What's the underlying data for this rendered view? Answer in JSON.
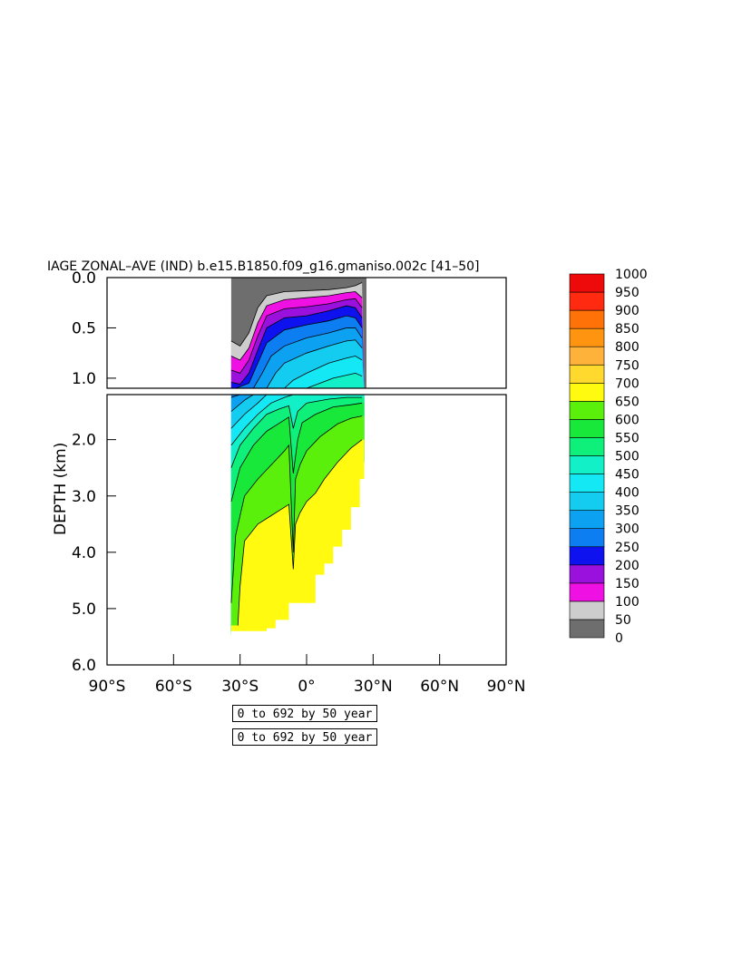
{
  "chart_data": {
    "type": "heatmap",
    "title": "IAGE ZONAL–AVE (IND) b.e15.B1850.f09_g16.gmaniso.002c [41–50]",
    "ylabel": "DEPTH (km)",
    "x_ticks": [
      "90°S",
      "60°S",
      "30°S",
      "0°",
      "30°N",
      "60°N",
      "90°N"
    ],
    "y_ticks_upper": [
      "0.0",
      "0.5",
      "1.0"
    ],
    "y_ticks_lower": [
      "2.0",
      "3.0",
      "4.0",
      "5.0",
      "6.0"
    ],
    "xlim": [
      -90,
      90
    ],
    "ylim_upper_km": [
      0.0,
      1.1
    ],
    "ylim_lower_km": [
      1.2,
      6.0
    ],
    "data_extent_lat": [
      -34,
      26
    ],
    "levels": [
      0,
      50,
      100,
      150,
      200,
      250,
      300,
      350,
      400,
      450,
      500,
      550,
      600,
      650,
      700,
      750,
      800,
      850,
      900,
      950,
      1000
    ],
    "level_labels": [
      "0",
      "50",
      "100",
      "150",
      "200",
      "250",
      "300",
      "350",
      "400",
      "450",
      "500",
      "550",
      "600",
      "650",
      "700",
      "750",
      "800",
      "850",
      "900",
      "950",
      "1000"
    ],
    "level_colors": [
      "#6e6e6e",
      "#cdcdcd",
      "#ef10e3",
      "#9a11de",
      "#0e12ef",
      "#0d7ef2",
      "#0da1f2",
      "#13ccf0",
      "#15e8f5",
      "#12f0c8",
      "#0ff07a",
      "#17e83a",
      "#5af00c",
      "#fffa10",
      "#ffd92e",
      "#ffb23a",
      "#ff9410",
      "#ff7208",
      "#ff2a10",
      "#ee0a0a",
      "#c8080a"
    ],
    "contours_upper": [
      {
        "level": 50,
        "points": [
          [
            -34,
            0.63
          ],
          [
            -30,
            0.68
          ],
          [
            -26,
            0.55
          ],
          [
            -22,
            0.3
          ],
          [
            -18,
            0.18
          ],
          [
            -10,
            0.14
          ],
          [
            0,
            0.13
          ],
          [
            10,
            0.12
          ],
          [
            18,
            0.1
          ],
          [
            22,
            0.08
          ],
          [
            25,
            0.05
          ]
        ]
      },
      {
        "level": 100,
        "points": [
          [
            -34,
            0.78
          ],
          [
            -30,
            0.82
          ],
          [
            -26,
            0.7
          ],
          [
            -22,
            0.45
          ],
          [
            -18,
            0.28
          ],
          [
            -10,
            0.22
          ],
          [
            0,
            0.2
          ],
          [
            10,
            0.18
          ],
          [
            18,
            0.15
          ],
          [
            22,
            0.14
          ],
          [
            25,
            0.2
          ]
        ]
      },
      {
        "level": 150,
        "points": [
          [
            -34,
            0.92
          ],
          [
            -30,
            0.95
          ],
          [
            -26,
            0.82
          ],
          [
            -22,
            0.58
          ],
          [
            -18,
            0.38
          ],
          [
            -10,
            0.31
          ],
          [
            0,
            0.29
          ],
          [
            10,
            0.26
          ],
          [
            18,
            0.22
          ],
          [
            22,
            0.21
          ],
          [
            25,
            0.3
          ]
        ]
      },
      {
        "level": 200,
        "points": [
          [
            -34,
            1.04
          ],
          [
            -30,
            1.06
          ],
          [
            -26,
            0.95
          ],
          [
            -22,
            0.72
          ],
          [
            -18,
            0.5
          ],
          [
            -10,
            0.4
          ],
          [
            0,
            0.38
          ],
          [
            10,
            0.33
          ],
          [
            18,
            0.28
          ],
          [
            22,
            0.3
          ],
          [
            25,
            0.4
          ]
        ]
      },
      {
        "level": 250,
        "points": [
          [
            -32,
            1.1
          ],
          [
            -26,
            1.05
          ],
          [
            -22,
            0.85
          ],
          [
            -18,
            0.65
          ],
          [
            -10,
            0.52
          ],
          [
            0,
            0.47
          ],
          [
            10,
            0.43
          ],
          [
            18,
            0.38
          ],
          [
            22,
            0.4
          ],
          [
            25,
            0.5
          ]
        ]
      },
      {
        "level": 300,
        "points": [
          [
            -24,
            1.1
          ],
          [
            -20,
            0.95
          ],
          [
            -16,
            0.78
          ],
          [
            -10,
            0.68
          ],
          [
            0,
            0.6
          ],
          [
            10,
            0.55
          ],
          [
            18,
            0.5
          ],
          [
            22,
            0.5
          ],
          [
            25,
            0.6
          ]
        ]
      },
      {
        "level": 350,
        "points": [
          [
            -18,
            1.1
          ],
          [
            -14,
            0.95
          ],
          [
            -10,
            0.85
          ],
          [
            0,
            0.75
          ],
          [
            10,
            0.68
          ],
          [
            18,
            0.63
          ],
          [
            22,
            0.62
          ],
          [
            25,
            0.7
          ]
        ]
      },
      {
        "level": 400,
        "points": [
          [
            -10,
            1.1
          ],
          [
            -6,
            1.02
          ],
          [
            0,
            0.95
          ],
          [
            10,
            0.85
          ],
          [
            18,
            0.8
          ],
          [
            22,
            0.78
          ],
          [
            25,
            0.82
          ]
        ]
      },
      {
        "level": 450,
        "points": [
          [
            0,
            1.1
          ],
          [
            6,
            1.05
          ],
          [
            12,
            1.0
          ],
          [
            18,
            0.97
          ],
          [
            22,
            0.95
          ],
          [
            25,
            0.98
          ]
        ]
      }
    ],
    "contours_lower": [
      {
        "level": 300,
        "points": [
          [
            -34,
            1.25
          ],
          [
            -30,
            1.2
          ]
        ]
      },
      {
        "level": 350,
        "points": [
          [
            -34,
            1.5
          ],
          [
            -28,
            1.3
          ],
          [
            -24,
            1.2
          ]
        ]
      },
      {
        "level": 400,
        "points": [
          [
            -34,
            1.8
          ],
          [
            -28,
            1.55
          ],
          [
            -22,
            1.35
          ],
          [
            -18,
            1.2
          ]
        ]
      },
      {
        "level": 450,
        "points": [
          [
            -34,
            2.1
          ],
          [
            -28,
            1.8
          ],
          [
            -22,
            1.55
          ],
          [
            -16,
            1.35
          ],
          [
            -10,
            1.25
          ],
          [
            -6,
            1.2
          ]
        ]
      },
      {
        "level": 500,
        "points": [
          [
            -34,
            2.5
          ],
          [
            -30,
            2.1
          ],
          [
            -24,
            1.8
          ],
          [
            -18,
            1.55
          ],
          [
            -12,
            1.45
          ],
          [
            -8,
            1.4
          ],
          [
            -6,
            1.8
          ],
          [
            -4,
            1.5
          ],
          [
            0,
            1.35
          ],
          [
            10,
            1.28
          ],
          [
            18,
            1.25
          ],
          [
            25,
            1.25
          ]
        ]
      },
      {
        "level": 550,
        "points": [
          [
            -34,
            3.1
          ],
          [
            -30,
            2.5
          ],
          [
            -24,
            2.1
          ],
          [
            -18,
            1.85
          ],
          [
            -12,
            1.7
          ],
          [
            -8,
            1.6
          ],
          [
            -6,
            2.6
          ],
          [
            -4,
            2.0
          ],
          [
            -2,
            1.7
          ],
          [
            4,
            1.55
          ],
          [
            12,
            1.42
          ],
          [
            20,
            1.38
          ],
          [
            25,
            1.35
          ]
        ]
      },
      {
        "level": 600,
        "points": [
          [
            -34,
            4.9
          ],
          [
            -32,
            3.7
          ],
          [
            -28,
            3.0
          ],
          [
            -22,
            2.7
          ],
          [
            -16,
            2.45
          ],
          [
            -10,
            2.2
          ],
          [
            -8,
            2.1
          ],
          [
            -6,
            4.0
          ],
          [
            -5,
            2.7
          ],
          [
            -3,
            2.45
          ],
          [
            0,
            2.2
          ],
          [
            6,
            1.95
          ],
          [
            14,
            1.72
          ],
          [
            20,
            1.62
          ],
          [
            25,
            1.58
          ]
        ]
      },
      {
        "level": 650,
        "points": [
          [
            -31,
            5.3
          ],
          [
            -30,
            4.6
          ],
          [
            -28,
            3.8
          ],
          [
            -22,
            3.5
          ],
          [
            -16,
            3.35
          ],
          [
            -10,
            3.2
          ],
          [
            -8,
            3.15
          ],
          [
            -6,
            4.3
          ],
          [
            -5,
            3.5
          ],
          [
            -3,
            3.3
          ],
          [
            0,
            3.1
          ],
          [
            4,
            2.95
          ],
          [
            8,
            2.7
          ],
          [
            14,
            2.4
          ],
          [
            20,
            2.15
          ],
          [
            25,
            2.0
          ]
        ]
      }
    ],
    "bottom_lower": [
      [
        -34,
        5.4
      ],
      [
        -28,
        5.4
      ],
      [
        -22,
        5.4
      ],
      [
        -18,
        5.35
      ],
      [
        -14,
        5.2
      ],
      [
        -8,
        4.9
      ],
      [
        2,
        4.9
      ],
      [
        4,
        4.4
      ],
      [
        8,
        4.2
      ],
      [
        12,
        3.9
      ],
      [
        16,
        3.6
      ],
      [
        20,
        3.2
      ],
      [
        24,
        2.7
      ],
      [
        26,
        2.4
      ]
    ]
  },
  "footer": {
    "range_1": "0 to 692 by 50 year",
    "range_2": "0 to 692 by 50 year"
  }
}
